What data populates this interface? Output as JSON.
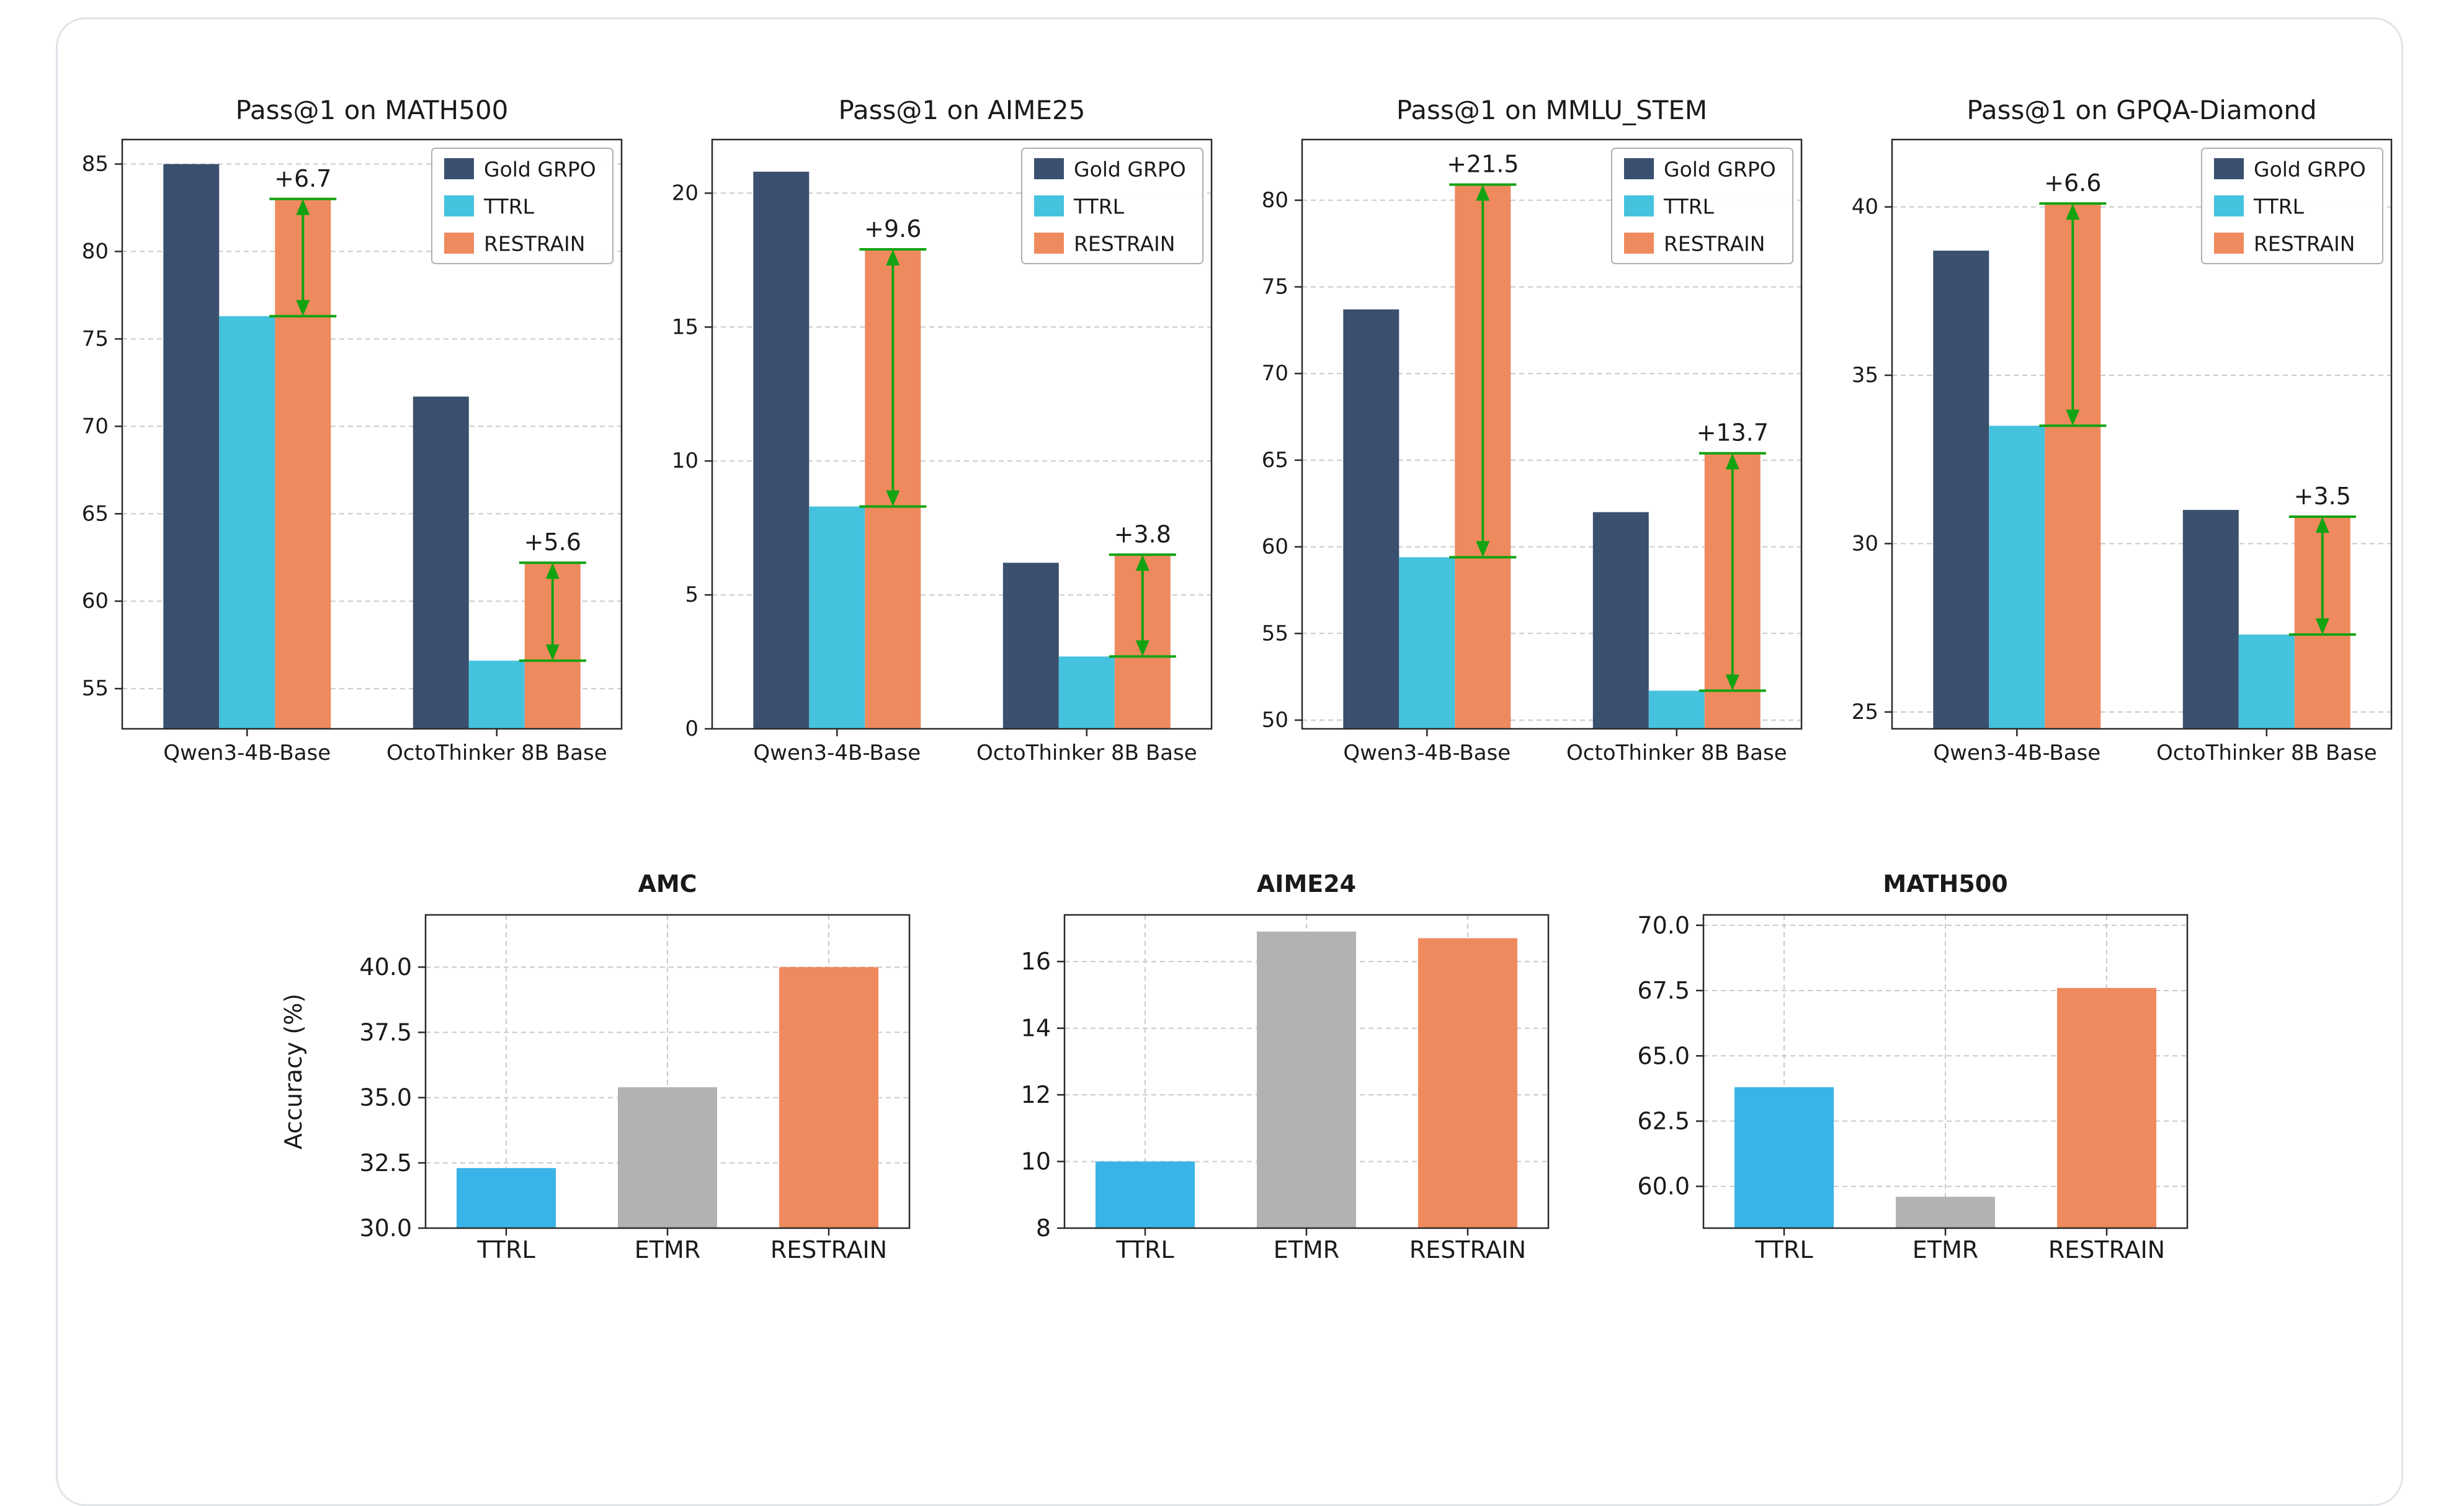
{
  "style": {
    "annotation_color": "#12a312",
    "grid_color": "#c9c9c9",
    "gold_grpo_color": "#3a506e",
    "ttrl_color": "#45c2de",
    "restrain_color": "#ef8a5e",
    "ttrl_bottom_color": "#3ab4e8",
    "etmr_color": "#b2b2b2"
  },
  "chart_data": [
    {
      "id": "pass1-math500",
      "type": "bar",
      "panel": "top",
      "title": "Pass@1 on MATH500",
      "categories": [
        "Qwen3-4B-Base",
        "OctoThinker 8B Base"
      ],
      "series": [
        {
          "name": "Gold GRPO",
          "color": "#3a506e",
          "values": [
            85.0,
            71.7
          ]
        },
        {
          "name": "TTRL",
          "color": "#45c2de",
          "values": [
            76.3,
            56.6
          ]
        },
        {
          "name": "RESTRAIN",
          "color": "#ef8a5e",
          "values": [
            83.0,
            62.2
          ]
        }
      ],
      "annotations": [
        {
          "group": 0,
          "label": "+6.7",
          "from": 76.3,
          "to": 83.0
        },
        {
          "group": 1,
          "label": "+5.6",
          "from": 56.6,
          "to": 62.2
        }
      ],
      "ylim": [
        52.7,
        86.4
      ],
      "yticks": [
        55,
        60,
        65,
        70,
        75,
        80,
        85
      ],
      "ytick_labels": [
        "55",
        "60",
        "65",
        "70",
        "75",
        "80",
        "85"
      ],
      "legend": true,
      "legend_position": "top-right",
      "grid": "horizontal"
    },
    {
      "id": "pass1-aime25",
      "type": "bar",
      "panel": "top",
      "title": "Pass@1 on AIME25",
      "categories": [
        "Qwen3-4B-Base",
        "OctoThinker 8B Base"
      ],
      "series": [
        {
          "name": "Gold GRPO",
          "color": "#3a506e",
          "values": [
            20.8,
            6.2
          ]
        },
        {
          "name": "TTRL",
          "color": "#45c2de",
          "values": [
            8.3,
            2.7
          ]
        },
        {
          "name": "RESTRAIN",
          "color": "#ef8a5e",
          "values": [
            17.9,
            6.5
          ]
        }
      ],
      "annotations": [
        {
          "group": 0,
          "label": "+9.6",
          "from": 8.3,
          "to": 17.9
        },
        {
          "group": 1,
          "label": "+3.8",
          "from": 2.7,
          "to": 6.5
        }
      ],
      "ylim": [
        0,
        22
      ],
      "yticks": [
        0,
        5,
        10,
        15,
        20
      ],
      "ytick_labels": [
        "0",
        "5",
        "10",
        "15",
        "20"
      ],
      "legend": true,
      "legend_position": "top-right",
      "grid": "horizontal"
    },
    {
      "id": "pass1-mmlu-stem",
      "type": "bar",
      "panel": "top",
      "title": "Pass@1 on MMLU_STEM",
      "categories": [
        "Qwen3-4B-Base",
        "OctoThinker 8B Base"
      ],
      "series": [
        {
          "name": "Gold GRPO",
          "color": "#3a506e",
          "values": [
            73.7,
            62.0
          ]
        },
        {
          "name": "TTRL",
          "color": "#45c2de",
          "values": [
            59.4,
            51.7
          ]
        },
        {
          "name": "RESTRAIN",
          "color": "#ef8a5e",
          "values": [
            80.9,
            65.4
          ]
        }
      ],
      "annotations": [
        {
          "group": 0,
          "label": "+21.5",
          "from": 59.4,
          "to": 80.9
        },
        {
          "group": 1,
          "label": "+13.7",
          "from": 51.7,
          "to": 65.4
        }
      ],
      "ylim": [
        49.5,
        83.5
      ],
      "yticks": [
        50,
        55,
        60,
        65,
        70,
        75,
        80
      ],
      "ytick_labels": [
        "50",
        "55",
        "60",
        "65",
        "70",
        "75",
        "80"
      ],
      "legend": true,
      "legend_position": "top-right",
      "grid": "horizontal"
    },
    {
      "id": "pass1-gpqa-diamond",
      "type": "bar",
      "panel": "top",
      "title": "Pass@1 on GPQA-Diamond",
      "categories": [
        "Qwen3-4B-Base",
        "OctoThinker 8B Base"
      ],
      "series": [
        {
          "name": "Gold GRPO",
          "color": "#3a506e",
          "values": [
            38.7,
            31.0
          ]
        },
        {
          "name": "TTRL",
          "color": "#45c2de",
          "values": [
            33.5,
            27.3
          ]
        },
        {
          "name": "RESTRAIN",
          "color": "#ef8a5e",
          "values": [
            40.1,
            30.8
          ]
        }
      ],
      "annotations": [
        {
          "group": 0,
          "label": "+6.6",
          "from": 33.5,
          "to": 40.1
        },
        {
          "group": 1,
          "label": "+3.5",
          "from": 27.3,
          "to": 30.8
        }
      ],
      "ylim": [
        24.5,
        42
      ],
      "yticks": [
        25,
        30,
        35,
        40
      ],
      "ytick_labels": [
        "25",
        "30",
        "35",
        "40"
      ],
      "legend": true,
      "legend_position": "top-right",
      "grid": "horizontal"
    },
    {
      "id": "amc",
      "type": "bar",
      "panel": "bottom",
      "title": "AMC",
      "ylabel": "Accuracy (%)",
      "categories": [
        "TTRL",
        "ETMR",
        "RESTRAIN"
      ],
      "values": [
        32.3,
        35.4,
        40.0
      ],
      "colors": [
        "#3ab4e8",
        "#b2b2b2",
        "#ef8a5e"
      ],
      "ylim": [
        30,
        42
      ],
      "yticks": [
        30.0,
        32.5,
        35.0,
        37.5,
        40.0
      ],
      "ytick_labels": [
        "30.0",
        "32.5",
        "35.0",
        "37.5",
        "40.0"
      ],
      "legend": false,
      "grid": "both"
    },
    {
      "id": "aime24",
      "type": "bar",
      "panel": "bottom",
      "title": "AIME24",
      "categories": [
        "TTRL",
        "ETMR",
        "RESTRAIN"
      ],
      "values": [
        10.0,
        16.9,
        16.7
      ],
      "colors": [
        "#3ab4e8",
        "#b2b2b2",
        "#ef8a5e"
      ],
      "ylim": [
        8,
        17.4
      ],
      "yticks": [
        8,
        10,
        12,
        14,
        16
      ],
      "ytick_labels": [
        "8",
        "10",
        "12",
        "14",
        "16"
      ],
      "legend": false,
      "grid": "both"
    },
    {
      "id": "math500-bottom",
      "type": "bar",
      "panel": "bottom",
      "title": "MATH500",
      "categories": [
        "TTRL",
        "ETMR",
        "RESTRAIN"
      ],
      "values": [
        63.8,
        59.6,
        67.6
      ],
      "colors": [
        "#3ab4e8",
        "#b2b2b2",
        "#ef8a5e"
      ],
      "ylim": [
        58.4,
        70.4
      ],
      "yticks": [
        60.0,
        62.5,
        65.0,
        67.5,
        70.0
      ],
      "ytick_labels": [
        "60.0",
        "62.5",
        "65.0",
        "67.5",
        "70.0"
      ],
      "legend": false,
      "grid": "both"
    }
  ]
}
